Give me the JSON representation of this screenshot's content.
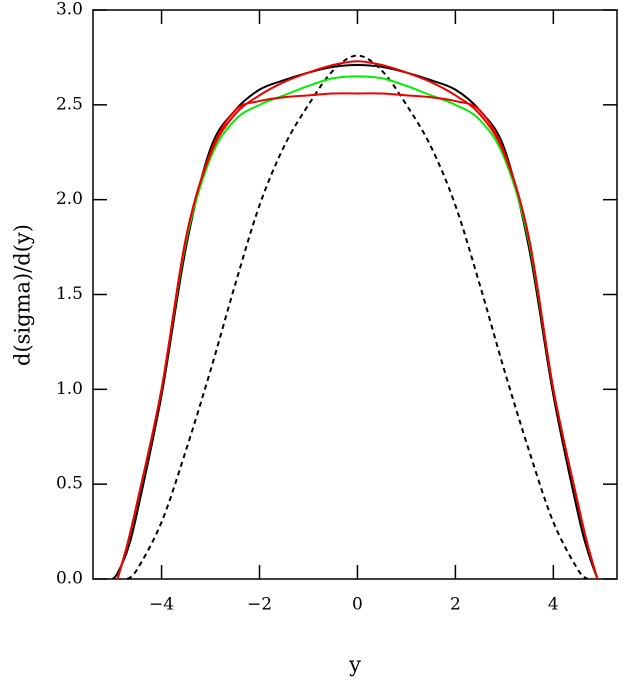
{
  "chart_data": {
    "type": "line",
    "x_label": "y",
    "y_label": "d(sigma)/d(y)",
    "x": [
      -5,
      -4.9,
      -4.7,
      -4.5,
      -4,
      -3.5,
      -3,
      -2.5,
      -2,
      -1.5,
      -1,
      -0.5,
      0,
      0.5,
      1,
      1.5,
      2,
      2.5,
      3,
      3.5,
      4,
      4.5,
      4.7,
      4.9
    ],
    "series": [
      {
        "color": "#000000",
        "dash": false,
        "values": [
          0,
          0.03,
          0.15,
          0.35,
          0.97,
          1.75,
          2.27,
          2.47,
          2.58,
          2.63,
          2.67,
          2.7,
          2.71,
          2.7,
          2.67,
          2.63,
          2.58,
          2.47,
          2.27,
          1.75,
          0.97,
          0.35,
          0.15,
          0
        ]
      },
      {
        "color": "#000000",
        "dash": true,
        "values": [
          null,
          null,
          0,
          0.05,
          0.3,
          0.68,
          1.1,
          1.55,
          1.97,
          2.28,
          2.5,
          2.68,
          2.76,
          2.68,
          2.5,
          2.28,
          1.97,
          1.55,
          1.1,
          0.68,
          0.3,
          0.05,
          0,
          null
        ]
      },
      {
        "color": "#00ee00",
        "dash": false,
        "values": [
          null,
          0,
          0.18,
          0.4,
          1.0,
          1.78,
          2.22,
          2.42,
          2.5,
          2.55,
          2.6,
          2.64,
          2.65,
          2.64,
          2.6,
          2.55,
          2.5,
          2.42,
          2.22,
          1.78,
          1.0,
          0.4,
          0.18,
          0
        ]
      },
      {
        "color": "#ee0000",
        "dash": false,
        "values": [
          null,
          0,
          0.18,
          0.4,
          1.0,
          1.8,
          2.25,
          2.47,
          2.52,
          2.54,
          2.55,
          2.56,
          2.56,
          2.56,
          2.55,
          2.54,
          2.52,
          2.47,
          2.25,
          1.8,
          1.0,
          0.4,
          0.18,
          0
        ]
      },
      {
        "color": "#ee0000",
        "dash": false,
        "values": [
          null,
          0,
          0.18,
          0.4,
          1.0,
          1.8,
          2.24,
          2.45,
          2.55,
          2.62,
          2.67,
          2.71,
          2.73,
          2.71,
          2.67,
          2.62,
          2.55,
          2.45,
          2.24,
          1.8,
          1.0,
          0.4,
          0.18,
          0
        ]
      }
    ],
    "xlim": [
      -5.4,
      5.3
    ],
    "xticks": [
      {
        "value": -4,
        "label": "−4"
      },
      {
        "value": -2,
        "label": "−2"
      },
      0,
      2,
      4
    ],
    "ylim": [
      0,
      3
    ],
    "yticks": [
      {
        "value": 0,
        "label": "0.0"
      },
      {
        "value": 0.5,
        "label": "0.5"
      },
      {
        "value": 1,
        "label": "1.0"
      },
      {
        "value": 1.5,
        "label": "1.5"
      },
      {
        "value": 2,
        "label": "2.0"
      },
      {
        "value": 2.5,
        "label": "2.5"
      },
      {
        "value": 3,
        "label": "3.0"
      }
    ]
  }
}
